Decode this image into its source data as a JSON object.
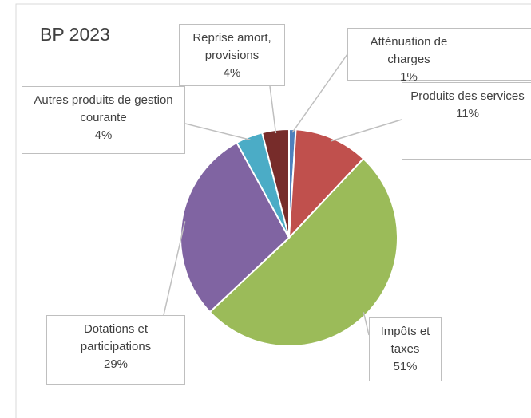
{
  "chart_data": {
    "type": "pie",
    "title": "BP 2023",
    "categories": [
      "Atténuation de charges",
      "Produits des services",
      "Impôts et taxes",
      "Dotations et participations",
      "Autres produits de gestion courante",
      "Reprise amort, provisions"
    ],
    "values": [
      1,
      11,
      51,
      29,
      4,
      4
    ],
    "value_labels": [
      "1%",
      "11%",
      "51%",
      "29%",
      "4%",
      "4%"
    ],
    "colors": [
      "#4f81bd",
      "#c0504d",
      "#9bbb59",
      "#8064a2",
      "#4bacc6",
      "#772c2a"
    ]
  }
}
